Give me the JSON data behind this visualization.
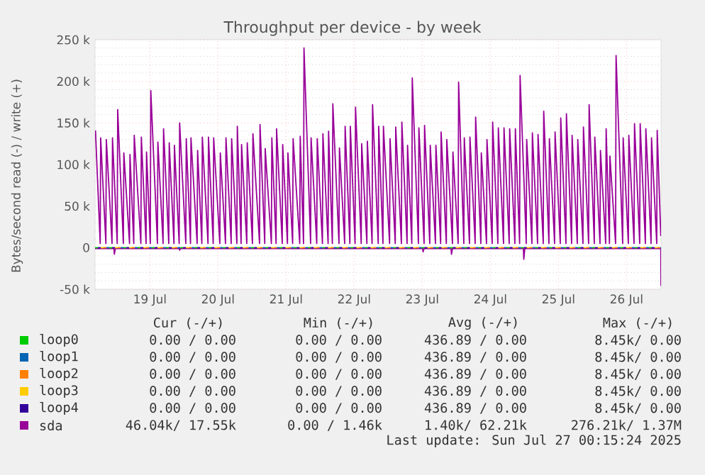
{
  "chart_data": {
    "type": "line",
    "title": "Throughput per device - by week",
    "ylabel": "Bytes/second read (-) / write (+)",
    "xlim": [
      "2025-07-18T16:40",
      "2025-07-27T00:10"
    ],
    "xticks": [
      {
        "value": "2025-07-19T12:00",
        "label": "19 Jul"
      },
      {
        "value": "2025-07-20T12:00",
        "label": "20 Jul"
      },
      {
        "value": "2025-07-21T12:00",
        "label": "21 Jul"
      },
      {
        "value": "2025-07-22T12:00",
        "label": "22 Jul"
      },
      {
        "value": "2025-07-23T12:00",
        "label": "23 Jul"
      },
      {
        "value": "2025-07-24T12:00",
        "label": "24 Jul"
      },
      {
        "value": "2025-07-25T12:00",
        "label": "25 Jul"
      },
      {
        "value": "2025-07-26T12:00",
        "label": "26 Jul"
      }
    ],
    "ylim": [
      -50000,
      250000
    ],
    "yticks": [
      {
        "value": -50000,
        "label": "-50 k"
      },
      0,
      {
        "value": 50000,
        "label": "50 k"
      },
      {
        "value": 100000,
        "label": "100 k"
      },
      {
        "value": 150000,
        "label": "150 k"
      },
      {
        "value": 200000,
        "label": "200 k"
      },
      {
        "value": 250000,
        "label": "250 k"
      }
    ],
    "grid": true,
    "legend": "bottom",
    "series": [
      {
        "name": "loop0",
        "color": "#00cc00",
        "line_style": "dashed",
        "x": [
          "2025-07-18T16:40",
          "2025-07-27T00:10"
        ],
        "values": [
          0,
          0
        ]
      },
      {
        "name": "loop1",
        "color": "#0066b3",
        "line_style": "dashed",
        "x": [
          "2025-07-18T16:40",
          "2025-07-27T00:10"
        ],
        "values": [
          0,
          0
        ]
      },
      {
        "name": "loop2",
        "color": "#ff8000",
        "line_style": "dashed",
        "x": [
          "2025-07-18T16:40",
          "2025-07-27T00:10"
        ],
        "values": [
          0,
          0
        ]
      },
      {
        "name": "loop3",
        "color": "#ffcc00",
        "line_style": "dashed",
        "x": [
          "2025-07-18T16:40",
          "2025-07-27T00:10"
        ],
        "values": [
          0,
          0
        ]
      },
      {
        "name": "loop4",
        "color": "#330099",
        "line_style": "dashed",
        "x": [
          "2025-07-18T16:40",
          "2025-07-27T00:10"
        ],
        "values": [
          0,
          0
        ]
      },
      {
        "name": "sda",
        "color": "#990099",
        "x": [
          "2025-07-18T16:49",
          "2025-07-18T18:29",
          "2025-07-18T18:39",
          "2025-07-18T20:29",
          "2025-07-18T20:39",
          "2025-07-18T22:39",
          "2025-07-18T22:49",
          "2025-07-19T00:29",
          "2025-07-19T00:39",
          "2025-07-19T02:39",
          "2025-07-19T02:49",
          "2025-07-19T04:49",
          "2025-07-19T04:59",
          "2025-07-19T06:19",
          "2025-07-19T06:29",
          "2025-07-19T08:49",
          "2025-07-19T08:59",
          "2025-07-19T10:39",
          "2025-07-19T10:49",
          "2025-07-19T12:09",
          "2025-07-19T12:19",
          "2025-07-19T14:39",
          "2025-07-19T14:49",
          "2025-07-19T16:39",
          "2025-07-19T16:49",
          "2025-07-19T18:39",
          "2025-07-19T18:49",
          "2025-07-19T20:29",
          "2025-07-19T20:39",
          "2025-07-19T22:19",
          "2025-07-19T22:29",
          "2025-07-20T00:39",
          "2025-07-20T00:49",
          "2025-07-20T02:19",
          "2025-07-20T02:29",
          "2025-07-20T04:39",
          "2025-07-20T04:49",
          "2025-07-20T06:19",
          "2025-07-20T06:29",
          "2025-07-20T08:29",
          "2025-07-20T08:39",
          "2025-07-20T10:19",
          "2025-07-20T10:29",
          "2025-07-20T12:39",
          "2025-07-20T12:49",
          "2025-07-20T14:39",
          "2025-07-20T14:49",
          "2025-07-20T16:39",
          "2025-07-20T16:49",
          "2025-07-20T18:39",
          "2025-07-20T18:49",
          "2025-07-20T20:09",
          "2025-07-20T20:19",
          "2025-07-20T22:09",
          "2025-07-20T22:19",
          "2025-07-21T00:09",
          "2025-07-21T00:19",
          "2025-07-21T02:39",
          "2025-07-21T02:49",
          "2025-07-21T04:29",
          "2025-07-21T04:39",
          "2025-07-21T06:49",
          "2025-07-21T06:59",
          "2025-07-21T08:29",
          "2025-07-21T08:39",
          "2025-07-21T10:39",
          "2025-07-21T10:49",
          "2025-07-21T12:29",
          "2025-07-21T12:39",
          "2025-07-21T14:19",
          "2025-07-21T14:29",
          "2025-07-21T16:49",
          "2025-07-21T16:59",
          "2025-07-21T18:09",
          "2025-07-21T18:19",
          "2025-07-21T20:39",
          "2025-07-21T20:49",
          "2025-07-21T22:49",
          "2025-07-21T22:59",
          "2025-07-22T00:49",
          "2025-07-22T00:59",
          "2025-07-22T02:49",
          "2025-07-22T02:59",
          "2025-07-22T04:19",
          "2025-07-22T04:29",
          "2025-07-22T06:39",
          "2025-07-22T06:49",
          "2025-07-22T08:39",
          "2025-07-22T08:49",
          "2025-07-22T10:29",
          "2025-07-22T10:39",
          "2025-07-22T12:19",
          "2025-07-22T12:29",
          "2025-07-22T14:29",
          "2025-07-22T14:39",
          "2025-07-22T16:29",
          "2025-07-22T16:39",
          "2025-07-22T18:19",
          "2025-07-22T18:29",
          "2025-07-22T20:29",
          "2025-07-22T20:39",
          "2025-07-22T22:09",
          "2025-07-22T22:19",
          "2025-07-23T00:29",
          "2025-07-23T00:39",
          "2025-07-23T02:29",
          "2025-07-23T02:39",
          "2025-07-23T04:39",
          "2025-07-23T04:49",
          "2025-07-23T06:39",
          "2025-07-23T06:49",
          "2025-07-23T08:19",
          "2025-07-23T08:29",
          "2025-07-23T10:39",
          "2025-07-23T10:49",
          "2025-07-23T12:39",
          "2025-07-23T12:49",
          "2025-07-23T14:39",
          "2025-07-23T14:49",
          "2025-07-23T16:39",
          "2025-07-23T16:49",
          "2025-07-23T18:29",
          "2025-07-23T18:39",
          "2025-07-23T20:29",
          "2025-07-23T20:39",
          "2025-07-23T22:39",
          "2025-07-23T22:49",
          "2025-07-24T00:39",
          "2025-07-24T00:49",
          "2025-07-24T02:39",
          "2025-07-24T02:49",
          "2025-07-24T04:39",
          "2025-07-24T04:49",
          "2025-07-24T06:39",
          "2025-07-24T06:49",
          "2025-07-24T08:39",
          "2025-07-24T08:49",
          "2025-07-24T10:39",
          "2025-07-24T10:49",
          "2025-07-24T12:39",
          "2025-07-24T12:49",
          "2025-07-24T14:39",
          "2025-07-24T14:49",
          "2025-07-24T16:39",
          "2025-07-24T16:49",
          "2025-07-24T18:39",
          "2025-07-24T18:49",
          "2025-07-24T20:39",
          "2025-07-24T20:49",
          "2025-07-24T22:19",
          "2025-07-24T22:29",
          "2025-07-25T00:39",
          "2025-07-25T00:49",
          "2025-07-25T02:39",
          "2025-07-25T02:49",
          "2025-07-25T04:39",
          "2025-07-25T04:49",
          "2025-07-25T06:39",
          "2025-07-25T06:49",
          "2025-07-25T08:39",
          "2025-07-25T08:49",
          "2025-07-25T10:39",
          "2025-07-25T10:49",
          "2025-07-25T12:39",
          "2025-07-25T12:49",
          "2025-07-25T14:39",
          "2025-07-25T14:49",
          "2025-07-25T16:39",
          "2025-07-25T16:49",
          "2025-07-25T18:39",
          "2025-07-25T18:49",
          "2025-07-25T20:39",
          "2025-07-25T20:49",
          "2025-07-25T22:39",
          "2025-07-25T22:49",
          "2025-07-26T00:39",
          "2025-07-26T00:49",
          "2025-07-26T02:39",
          "2025-07-26T02:49",
          "2025-07-26T04:39",
          "2025-07-26T04:49",
          "2025-07-26T05:59",
          "2025-07-26T06:09",
          "2025-07-26T08:09",
          "2025-07-26T08:19",
          "2025-07-26T10:39",
          "2025-07-26T10:49",
          "2025-07-26T12:39",
          "2025-07-26T12:49",
          "2025-07-26T14:39",
          "2025-07-26T14:49",
          "2025-07-26T16:39",
          "2025-07-26T16:49",
          "2025-07-26T18:39",
          "2025-07-26T18:49",
          "2025-07-26T20:39",
          "2025-07-26T20:49",
          "2025-07-26T22:39",
          "2025-07-26T22:49",
          "2025-07-27T00:05"
        ],
        "values": [
          141000,
          5000,
          132000,
          5000,
          130000,
          5000,
          132000,
          5000,
          166000,
          5000,
          114000,
          5000,
          112000,
          5000,
          135000,
          5000,
          133000,
          5000,
          115000,
          5000,
          189000,
          5000,
          127000,
          5000,
          143000,
          5000,
          126000,
          5000,
          123000,
          5000,
          150000,
          5000,
          131000,
          5000,
          132000,
          5000,
          117000,
          5000,
          133000,
          5000,
          133000,
          5000,
          132000,
          5000,
          114000,
          5000,
          132000,
          5000,
          131000,
          5000,
          146000,
          5000,
          124000,
          5000,
          126000,
          5000,
          137000,
          5000,
          148000,
          5000,
          119000,
          5000,
          132000,
          5000,
          143000,
          5000,
          124000,
          5000,
          114000,
          5000,
          131000,
          5000,
          134000,
          5000,
          240000,
          5000,
          132000,
          5000,
          131000,
          5000,
          137000,
          5000,
          140000,
          5000,
          173000,
          5000,
          120000,
          5000,
          146000,
          5000,
          146000,
          5000,
          169000,
          5000,
          125000,
          5000,
          128000,
          5000,
          172000,
          5000,
          146000,
          5000,
          146000,
          5000,
          131000,
          5000,
          145000,
          5000,
          151000,
          5000,
          123000,
          5000,
          204000,
          5000,
          144000,
          5000,
          147000,
          5000,
          123000,
          5000,
          123000,
          5000,
          139000,
          5000,
          130000,
          5000,
          115000,
          5000,
          199000,
          5000,
          132000,
          5000,
          133000,
          5000,
          157000,
          5000,
          114000,
          5000,
          130000,
          5000,
          151000,
          5000,
          144000,
          5000,
          144000,
          5000,
          143000,
          5000,
          143000,
          5000,
          207000,
          5000,
          130000,
          5000,
          138000,
          5000,
          136000,
          5000,
          164000,
          5000,
          131000,
          5000,
          139000,
          5000,
          156000,
          5000,
          161000,
          5000,
          135000,
          5000,
          130000,
          5000,
          145000,
          5000,
          172000,
          5000,
          133000,
          5000,
          117000,
          5000,
          143000,
          5000,
          110000,
          5000,
          231000,
          5000,
          132000,
          5000,
          135000,
          5000,
          149000,
          5000,
          149000,
          5000,
          143000,
          5000,
          132000,
          5000,
          141000,
          14000
        ]
      },
      {
        "color": "#990099",
        "x": [
          "2025-07-18T16:40",
          "2025-07-18T23:19",
          "2025-07-18T23:29",
          "2025-07-18T23:49",
          "2025-07-19T22:19",
          "2025-07-19T22:29",
          "2025-07-19T22:49",
          "2025-07-23T12:09",
          "2025-07-23T12:18",
          "2025-07-23T12:39",
          "2025-07-23T22:09",
          "2025-07-23T22:18",
          "2025-07-23T22:39",
          "2025-07-24T23:39",
          "2025-07-24T23:48",
          "2025-07-25T00:09",
          "2025-07-27T00:05",
          "2025-07-27T00:09"
        ],
        "values": [
          -1000,
          -1000,
          -8000,
          -1000,
          -1000,
          -3000,
          -1000,
          -1000,
          -5000,
          -1000,
          -1000,
          -8000,
          -1000,
          -1000,
          -14000,
          -1000,
          -1000,
          -46000
        ]
      }
    ],
    "annotations": [
      "Cur (-/+)",
      "Min (-/+)",
      "Avg (-/+)",
      "Max (-/+)",
      "0.00 / 0.00",
      "0.00 / 0.00",
      "436.89 / 0.00",
      "8.45k/ 0.00",
      "0.00 / 0.00",
      "0.00 / 0.00",
      "436.89 / 0.00",
      "8.45k/ 0.00",
      "0.00 / 0.00",
      "0.00 / 0.00",
      "436.89 / 0.00",
      "8.45k/ 0.00",
      "0.00 / 0.00",
      "0.00 / 0.00",
      "436.89 / 0.00",
      "8.45k/ 0.00",
      "0.00 / 0.00",
      "0.00 / 0.00",
      "436.89 / 0.00",
      "8.45k/ 0.00",
      "46.04k/ 17.55k",
      "0.00 / 1.46k",
      "1.40k/ 62.21k",
      "276.21k/ 1.37M",
      "Last update: Sun Jul 27 00:15:24 2025"
    ]
  }
}
